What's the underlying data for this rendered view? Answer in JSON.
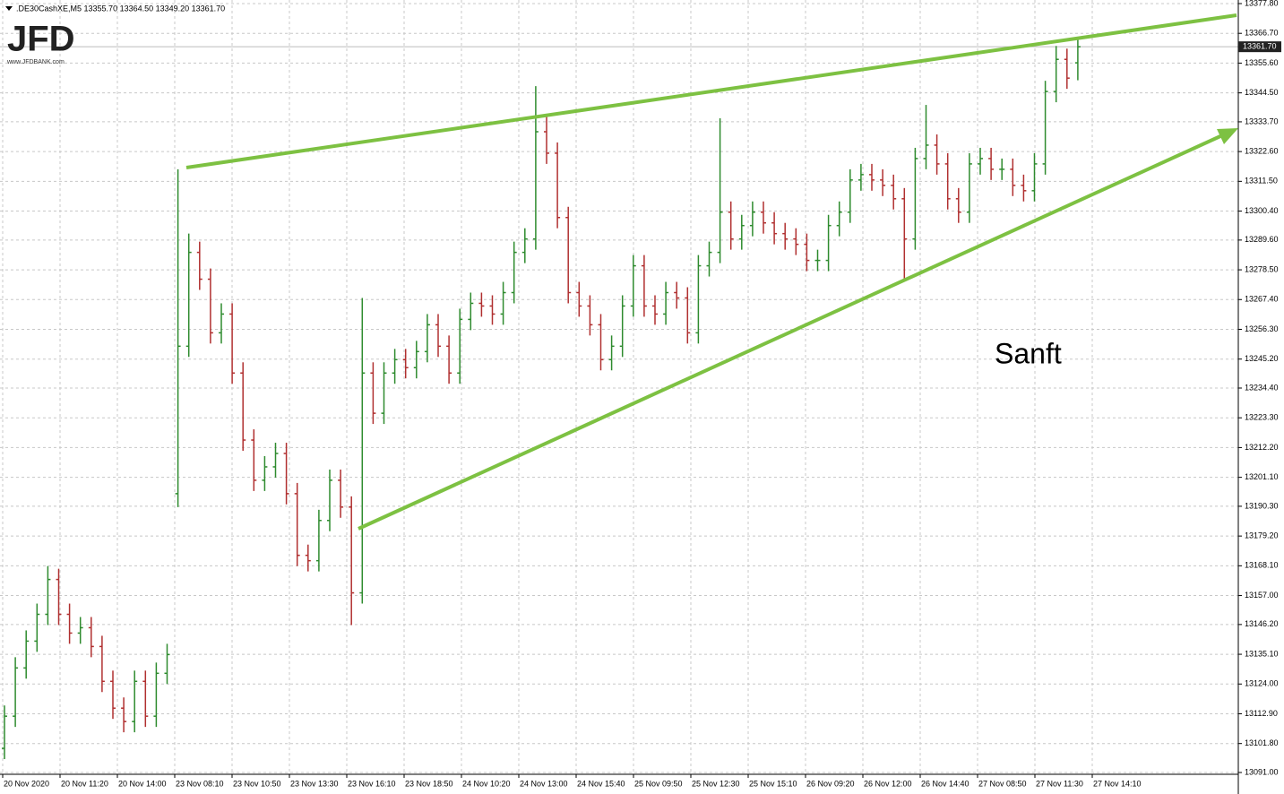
{
  "chart_data": {
    "type": "ohlc",
    "header": ".DE30CashXE,M5  13355.70 13364.50 13349.20 13361.70",
    "logo": "JFD",
    "logo_url": "www.JFDBANK.com",
    "annotation": "Sanft",
    "up_color": "#2e8b2e",
    "down_color": "#b03030",
    "grid": true,
    "ylim": [
      13091.0,
      13377.8
    ],
    "yticks": [
      {
        "value": 13091.0,
        "label": "13091.00"
      },
      {
        "value": 13101.8,
        "label": "13101.80"
      },
      {
        "value": 13112.9,
        "label": "13112.90"
      },
      {
        "value": 13124.0,
        "label": "13124.00"
      },
      {
        "value": 13135.1,
        "label": "13135.10"
      },
      {
        "value": 13146.2,
        "label": "13146.20"
      },
      {
        "value": 13157.0,
        "label": "13157.00"
      },
      {
        "value": 13168.1,
        "label": "13168.10"
      },
      {
        "value": 13179.2,
        "label": "13179.20"
      },
      {
        "value": 13190.3,
        "label": "13190.30"
      },
      {
        "value": 13201.1,
        "label": "13201.10"
      },
      {
        "value": 13212.2,
        "label": "13212.20"
      },
      {
        "value": 13223.3,
        "label": "13223.30"
      },
      {
        "value": 13234.4,
        "label": "13234.40"
      },
      {
        "value": 13245.2,
        "label": "13245.20"
      },
      {
        "value": 13256.3,
        "label": "13256.30"
      },
      {
        "value": 13267.4,
        "label": "13267.40"
      },
      {
        "value": 13278.5,
        "label": "13278.50"
      },
      {
        "value": 13289.6,
        "label": "13289.60"
      },
      {
        "value": 13300.4,
        "label": "13300.40"
      },
      {
        "value": 13311.5,
        "label": "13311.50"
      },
      {
        "value": 13322.6,
        "label": "13322.60"
      },
      {
        "value": 13333.7,
        "label": "13333.70"
      },
      {
        "value": 13344.5,
        "label": "13344.50"
      },
      {
        "value": 13355.6,
        "label": "13355.60"
      },
      {
        "value": 13366.7,
        "label": "13366.70"
      },
      {
        "value": 13377.8,
        "label": "13377.80"
      }
    ],
    "last_price": {
      "value": 13361.7,
      "label": "13361.70"
    },
    "time_labels": [
      "20 Nov 2020",
      "20 Nov 11:20",
      "20 Nov 14:00",
      "23 Nov 08:10",
      "23 Nov 10:50",
      "23 Nov 13:30",
      "23 Nov 16:10",
      "23 Nov 18:50",
      "24 Nov 10:20",
      "24 Nov 13:00",
      "24 Nov 15:40",
      "25 Nov 09:50",
      "25 Nov 12:30",
      "25 Nov 15:10",
      "26 Nov 09:20",
      "26 Nov 12:00",
      "26 Nov 14:40",
      "27 Nov 08:50",
      "27 Nov 11:30",
      "27 Nov 14:10"
    ],
    "open": [
      13100,
      13112,
      13130,
      13140,
      13150,
      13163,
      13150,
      13143,
      13145,
      13138,
      13125,
      13115,
      13110,
      13125,
      13112,
      13128,
      13195,
      13250,
      13285,
      13275,
      13255,
      13262,
      13240,
      13215,
      13200,
      13205,
      13210,
      13195,
      13172,
      13170,
      13185,
      13200,
      13190,
      13158,
      13240,
      13225,
      13240,
      13245,
      13242,
      13248,
      13258,
      13250,
      13240,
      13260,
      13266,
      13265,
      13262,
      13270,
      13285,
      13290,
      13330,
      13322,
      13298,
      13270,
      13265,
      13258,
      13245,
      13250,
      13265,
      13280,
      13265,
      13262,
      13270,
      13268,
      13255,
      13280,
      13285,
      13300,
      13290,
      13295,
      13300,
      13296,
      13292,
      13290,
      13288,
      13282,
      13282,
      13295,
      13300,
      13312,
      13314,
      13312,
      13310,
      13305,
      13290,
      13320,
      13325,
      13318,
      13305,
      13300,
      13318,
      13320,
      13316,
      13316,
      13310,
      13308,
      13318,
      13345,
      13357,
      13355.7
    ],
    "high": [
      13116,
      13134,
      13144,
      13154,
      13168,
      13167,
      13154,
      13149,
      13149,
      13142,
      13129,
      13119,
      13129,
      13129,
      13132,
      13139,
      13316,
      13292,
      13289,
      13279,
      13266,
      13266,
      13244,
      13219,
      13209,
      13214,
      13214,
      13199,
      13176,
      13189,
      13204,
      13204,
      13194,
      13268,
      13244,
      13244,
      13249,
      13249,
      13252,
      13262,
      13262,
      13254,
      13264,
      13270,
      13270,
      13269,
      13274,
      13289,
      13294,
      13347,
      13336,
      13326,
      13302,
      13274,
      13269,
      13262,
      13254,
      13269,
      13284,
      13284,
      13269,
      13274,
      13274,
      13272,
      13284,
      13289,
      13335,
      13304,
      13299,
      13304,
      13304,
      13300,
      13296,
      13294,
      13292,
      13286,
      13299,
      13304,
      13316,
      13318,
      13318,
      13316,
      13314,
      13309,
      13324,
      13340,
      13329,
      13322,
      13309,
      13322,
      13324,
      13324,
      13320,
      13320,
      13314,
      13322,
      13349,
      13362,
      13361,
      13364.5
    ],
    "low": [
      13096,
      13108,
      13126,
      13136,
      13146,
      13146,
      13139,
      13139,
      13134,
      13121,
      13111,
      13106,
      13106,
      13108,
      13108,
      13124,
      13190,
      13246,
      13271,
      13251,
      13251,
      13236,
      13211,
      13196,
      13196,
      13201,
      13191,
      13168,
      13166,
      13166,
      13181,
      13186,
      13146,
      13154,
      13221,
      13221,
      13236,
      13238,
      13238,
      13244,
      13246,
      13236,
      13236,
      13256,
      13261,
      13258,
      13258,
      13266,
      13281,
      13286,
      13318,
      13294,
      13266,
      13261,
      13254,
      13241,
      13241,
      13246,
      13261,
      13261,
      13258,
      13258,
      13264,
      13251,
      13251,
      13276,
      13281,
      13286,
      13286,
      13291,
      13292,
      13288,
      13286,
      13284,
      13278,
      13278,
      13278,
      13291,
      13296,
      13308,
      13308,
      13306,
      13301,
      13275,
      13286,
      13316,
      13314,
      13301,
      13296,
      13296,
      13314,
      13312,
      13312,
      13306,
      13304,
      13304,
      13314,
      13341,
      13346,
      13349.2
    ],
    "close": [
      13112,
      13130,
      13140,
      13150,
      13163,
      13150,
      13143,
      13145,
      13138,
      13125,
      13115,
      13110,
      13125,
      13112,
      13128,
      13135,
      13250,
      13285,
      13275,
      13255,
      13262,
      13240,
      13215,
      13200,
      13205,
      13210,
      13195,
      13172,
      13170,
      13185,
      13200,
      13190,
      13158,
      13240,
      13225,
      13240,
      13245,
      13242,
      13248,
      13258,
      13250,
      13240,
      13260,
      13266,
      13265,
      13262,
      13270,
      13285,
      13290,
      13330,
      13322,
      13298,
      13270,
      13265,
      13258,
      13245,
      13250,
      13265,
      13280,
      13265,
      13262,
      13270,
      13268,
      13255,
      13280,
      13285,
      13300,
      13290,
      13295,
      13300,
      13296,
      13292,
      13290,
      13288,
      13282,
      13282,
      13295,
      13300,
      13312,
      13314,
      13312,
      13310,
      13305,
      13290,
      13320,
      13325,
      13318,
      13305,
      13300,
      13318,
      13320,
      13316,
      13316,
      13310,
      13308,
      13318,
      13345,
      13357,
      13350,
      13361.7
    ]
  }
}
